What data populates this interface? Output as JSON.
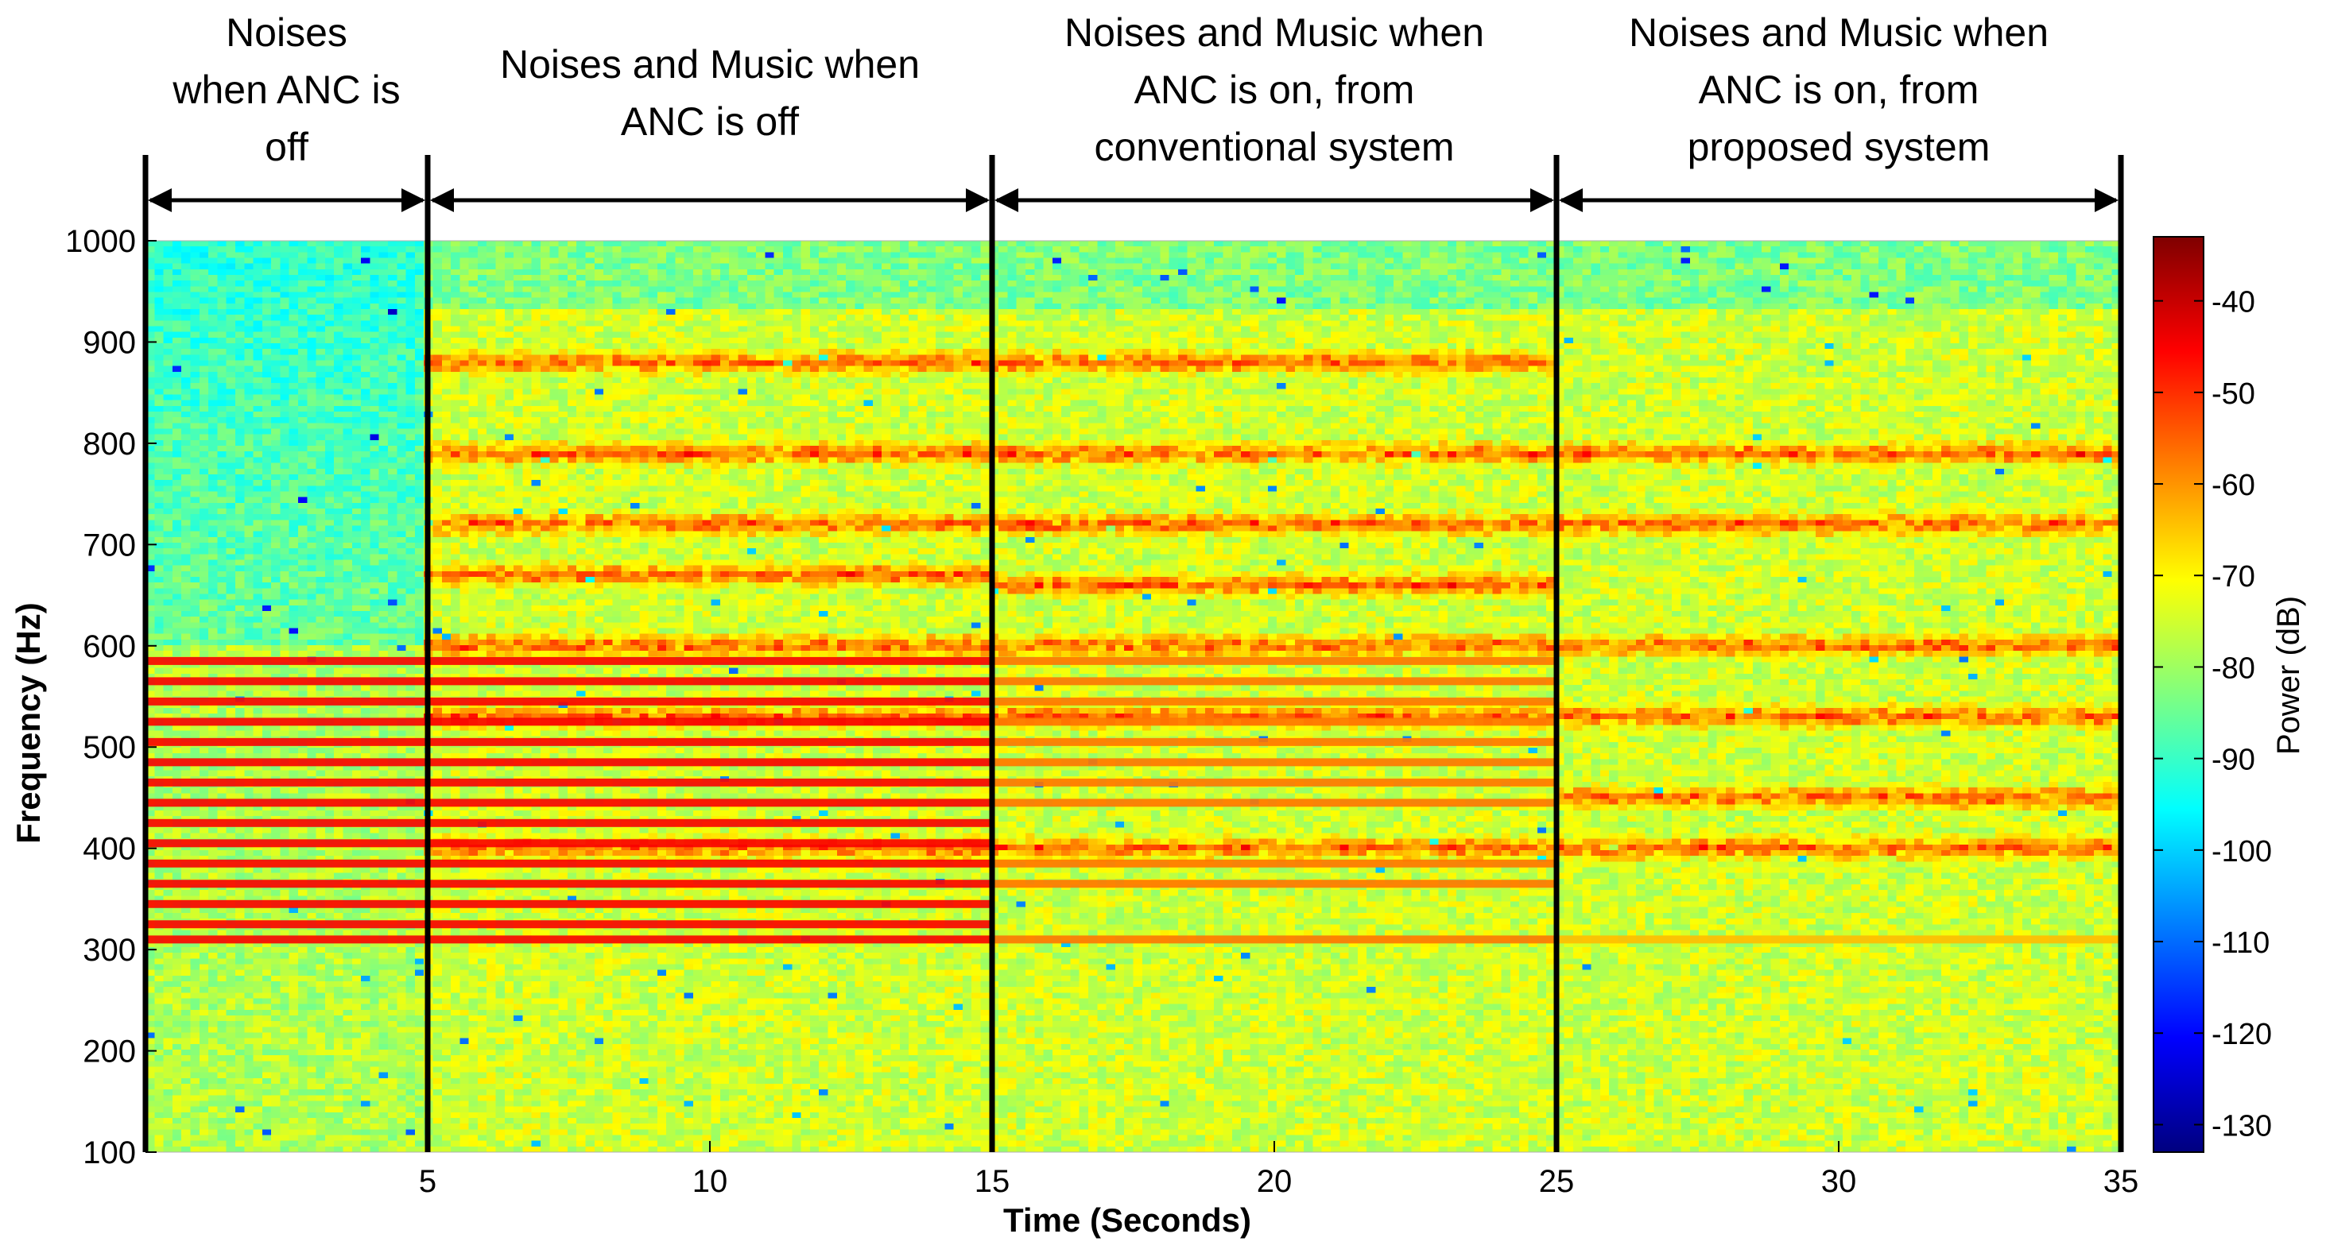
{
  "chart_data": {
    "type": "heatmap",
    "title": "",
    "xlabel": "Time (Seconds)",
    "ylabel": "Frequency (Hz)",
    "xlim": [
      0,
      35
    ],
    "ylim": [
      100,
      1000
    ],
    "x_ticks": [
      5,
      10,
      15,
      20,
      25,
      30,
      35
    ],
    "y_ticks": [
      100,
      200,
      300,
      400,
      500,
      600,
      700,
      800,
      900,
      1000
    ],
    "colorbar": {
      "label": "Power (dB)",
      "range": [
        -133,
        -33
      ],
      "ticks": [
        -40,
        -50,
        -60,
        -70,
        -80,
        -90,
        -100,
        -110,
        -120,
        -130
      ],
      "colormap": "jet"
    },
    "segments": [
      {
        "label_lines": [
          "Noises",
          "when ANC is",
          "off"
        ],
        "start": 0,
        "end": 5,
        "tones": [
          310,
          325,
          345,
          365,
          385,
          405,
          425,
          445,
          465,
          485,
          505,
          525,
          545,
          565,
          585
        ],
        "tone_db": -45,
        "bands": []
      },
      {
        "label_lines": [
          "Noises and Music when",
          "ANC is off"
        ],
        "start": 5,
        "end": 15,
        "tones": [
          310,
          325,
          345,
          365,
          385,
          405,
          425,
          445,
          465,
          485,
          505,
          525,
          545,
          565,
          585
        ],
        "tone_db": -45,
        "bands": [
          400,
          530,
          600,
          790,
          720,
          670,
          880
        ]
      },
      {
        "label_lines": [
          "Noises and Music when",
          "ANC is on, from",
          "conventional system"
        ],
        "start": 15,
        "end": 25,
        "tones": [
          310,
          365,
          385,
          445,
          465,
          485,
          505,
          525,
          545,
          565,
          585
        ],
        "tone_db": -57,
        "bands": [
          400,
          530,
          600,
          660,
          720,
          790,
          880
        ]
      },
      {
        "label_lines": [
          "Noises and Music when",
          "ANC is on, from",
          "proposed system"
        ],
        "start": 25,
        "end": 35,
        "tones": [
          310
        ],
        "tone_db": -64,
        "bands": [
          400,
          450,
          530,
          600,
          720,
          790
        ]
      }
    ],
    "band_levels_db": {
      "noise_floor": -75,
      "band_peak": -50
    },
    "colors": {
      "divider": "#000000",
      "background": "#ffffff"
    }
  }
}
